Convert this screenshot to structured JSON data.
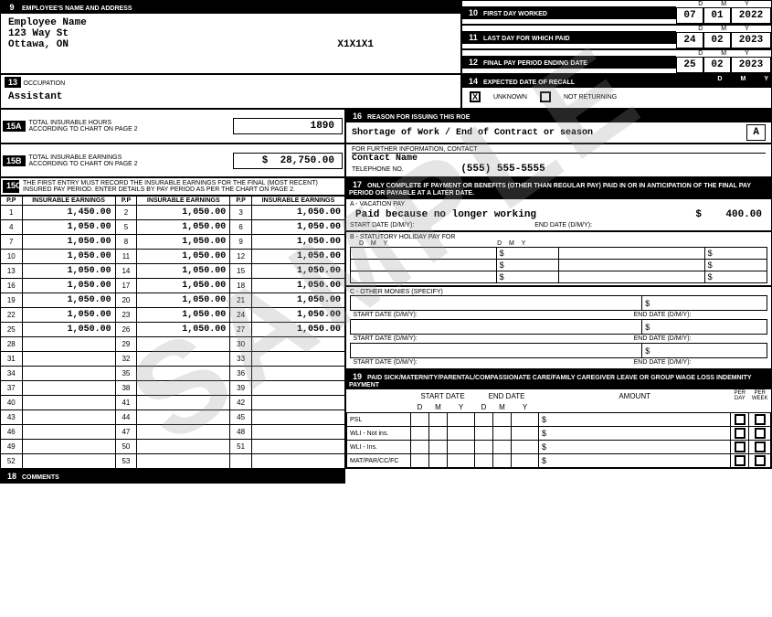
{
  "watermark": "SAMPLE",
  "box9": {
    "num": "9",
    "label": "EMPLOYEE'S NAME AND ADDRESS",
    "name": "Employee Name",
    "addr1": "123 Way St",
    "addr2": "Ottawa, ON",
    "postal": "X1X1X1"
  },
  "box10": {
    "num": "10",
    "label": "FIRST DAY WORKED",
    "d": "07",
    "m": "01",
    "y": "2022"
  },
  "box11": {
    "num": "11",
    "label": "LAST DAY FOR WHICH PAID",
    "d": "24",
    "m": "02",
    "y": "2023"
  },
  "box12": {
    "num": "12",
    "label": "FINAL PAY PERIOD ENDING DATE",
    "d": "25",
    "m": "02",
    "y": "2023"
  },
  "box13": {
    "num": "13",
    "label": "OCCUPATION",
    "value": "Assistant"
  },
  "box14": {
    "num": "14",
    "label": "EXPECTED DATE OF RECALL",
    "unknown": "UNKNOWN",
    "notreturning": "NOT RETURNING",
    "unknownChecked": "X"
  },
  "box15a": {
    "num": "15A",
    "label": "TOTAL INSURABLE HOURS\nACCORDING TO CHART ON PAGE 2",
    "value": "1890"
  },
  "box15b": {
    "num": "15B",
    "label": "TOTAL INSURABLE EARNINGS\nACCORDING TO CHART ON PAGE 2",
    "value": "28,750.00",
    "cur": "$"
  },
  "box15c": {
    "num": "15C",
    "label": "THE FIRST ENTRY MUST RECORD THE INSURABLE EARNINGS FOR THE FINAL (MOST RECENT) INSURED PAY PERIOD. ENTER DETAILS BY PAY PERIOD AS PER THE CHART ON PAGE 2.",
    "colhdr": "INSURABLE EARNINGS",
    "pp": "P.P",
    "rows": [
      [
        "1",
        "1,450.00",
        "2",
        "1,050.00",
        "3",
        "1,050.00"
      ],
      [
        "4",
        "1,050.00",
        "5",
        "1,050.00",
        "6",
        "1,050.00"
      ],
      [
        "7",
        "1,050.00",
        "8",
        "1,050.00",
        "9",
        "1,050.00"
      ],
      [
        "10",
        "1,050.00",
        "11",
        "1,050.00",
        "12",
        "1,050.00"
      ],
      [
        "13",
        "1,050.00",
        "14",
        "1,050.00",
        "15",
        "1,050.00"
      ],
      [
        "16",
        "1,050.00",
        "17",
        "1,050.00",
        "18",
        "1,050.00"
      ],
      [
        "19",
        "1,050.00",
        "20",
        "1,050.00",
        "21",
        "1,050.00"
      ],
      [
        "22",
        "1,050.00",
        "23",
        "1,050.00",
        "24",
        "1,050.00"
      ],
      [
        "25",
        "1,050.00",
        "26",
        "1,050.00",
        "27",
        "1,050.00"
      ],
      [
        "28",
        "",
        "29",
        "",
        "30",
        ""
      ],
      [
        "31",
        "",
        "32",
        "",
        "33",
        ""
      ],
      [
        "34",
        "",
        "35",
        "",
        "36",
        ""
      ],
      [
        "37",
        "",
        "38",
        "",
        "39",
        ""
      ],
      [
        "40",
        "",
        "41",
        "",
        "42",
        ""
      ],
      [
        "43",
        "",
        "44",
        "",
        "45",
        ""
      ],
      [
        "46",
        "",
        "47",
        "",
        "48",
        ""
      ],
      [
        "49",
        "",
        "50",
        "",
        "51",
        ""
      ],
      [
        "52",
        "",
        "53",
        "",
        "",
        ""
      ]
    ]
  },
  "box16": {
    "num": "16",
    "label": "REASON FOR ISSUING THIS ROE",
    "reason": "Shortage of Work / End of Contract or season",
    "code": "A",
    "contact_label": "FOR FURTHER INFORMATION, CONTACT",
    "contact": "Contact Name",
    "tel_label": "TELEPHONE NO.",
    "tel": "(555) 555-5555"
  },
  "box17": {
    "num": "17",
    "label": "ONLY COMPLETE IF PAYMENT OR BENEFITS (OTHER THAN REGULAR PAY) PAID IN OR IN ANTICIPATION OF THE FINAL PAY PERIOD OR PAYABLE AT A LATER DATE.",
    "a_label": "A - VACATION PAY",
    "a_reason": "Paid because no longer working",
    "a_amt": "400.00",
    "start": "START DATE (D/M/Y):",
    "end": "END DATE (D/M/Y):",
    "b_label": "B - STATUTORY HOLIDAY PAY FOR",
    "d": "D",
    "m": "M",
    "y": "Y",
    "c_label": "C - OTHER MONIES (SPECIFY)"
  },
  "box18": {
    "num": "18",
    "label": "COMMENTS"
  },
  "box19": {
    "num": "19",
    "label": "PAID SICK/MATERNITY/PARENTAL/COMPASSIONATE CARE/FAMILY CAREGIVER  LEAVE OR GROUP WAGE LOSS INDEMNITY PAYMENT",
    "startdate": "START DATE",
    "enddate": "END DATE",
    "amount": "AMOUNT",
    "perday": "PER DAY",
    "perweek": "PER WEEK",
    "rows": [
      "PSL",
      "WLI - Not ins.",
      "WLI - Ins.",
      "MAT/PAR/CC/FC"
    ]
  }
}
